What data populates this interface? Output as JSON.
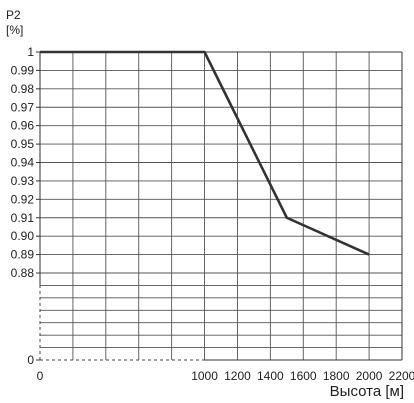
{
  "chart_data": {
    "type": "line",
    "ylabel_line1": "P2",
    "ylabel_line2": "[%]",
    "xlabel": "Высота [м]",
    "x_ticks": [
      {
        "value": 0,
        "label": "0"
      },
      {
        "value": 1000,
        "label": "1000"
      },
      {
        "value": 1200,
        "label": "1200"
      },
      {
        "value": 1400,
        "label": "1400"
      },
      {
        "value": 1600,
        "label": "1600"
      },
      {
        "value": 1800,
        "label": "1800"
      },
      {
        "value": 2000,
        "label": "2000"
      },
      {
        "value": 2200,
        "label": "2200"
      }
    ],
    "x_grid": [
      200,
      400,
      600,
      800,
      1000,
      1200,
      1400,
      1600,
      1800,
      2000
    ],
    "xlim": [
      0,
      2200
    ],
    "y_ticks_upper": [
      "1",
      "0.99",
      "0.98",
      "0.97",
      "0.96",
      "0.95",
      "0.94",
      "0.93",
      "0.92",
      "0.91",
      "0.90",
      "0.89",
      "0.88"
    ],
    "y_range_upper": [
      0.88,
      1.0
    ],
    "y_tick_zero": "0",
    "lower_section_gridlines": 6,
    "series": [
      {
        "x": [
          0,
          1000,
          1500,
          2000
        ],
        "y": [
          1.0,
          1.0,
          0.91,
          0.89
        ]
      }
    ],
    "grid": true,
    "colors": {
      "line": "#333333",
      "grid": "#555555"
    }
  }
}
